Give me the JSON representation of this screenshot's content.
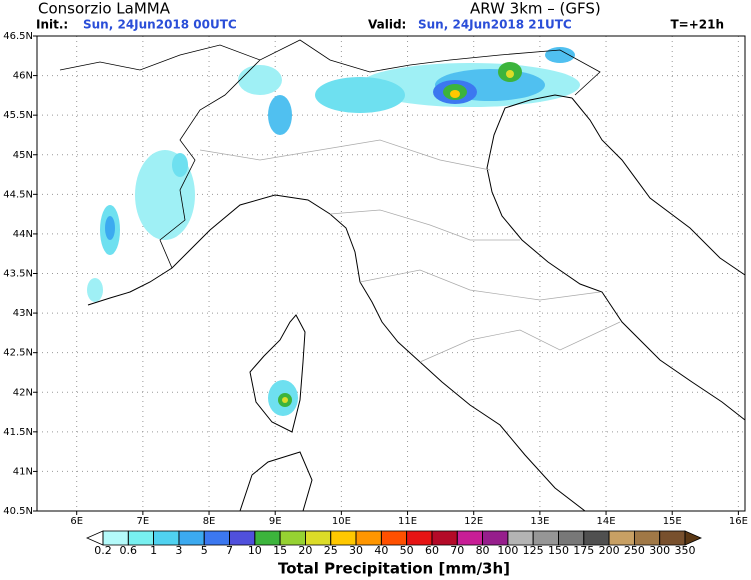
{
  "header": {
    "title": "Consorzio LaMMA",
    "model": "ARW 3km – (GFS)",
    "init_label": "Init.:",
    "init_value": "Sun, 24Jun2018 00UTC",
    "valid_label": "Valid:",
    "valid_value": "Sun, 24Jun2018 21UTC",
    "forecast_step": "T=+21h"
  },
  "map": {
    "lonlim": [
      5.4,
      16.1
    ],
    "latlim": [
      40.5,
      46.5
    ],
    "lon_ticks": [
      {
        "value": 6,
        "label": "6E"
      },
      {
        "value": 7,
        "label": "7E"
      },
      {
        "value": 8,
        "label": "8E"
      },
      {
        "value": 9,
        "label": "9E"
      },
      {
        "value": 10,
        "label": "10E"
      },
      {
        "value": 11,
        "label": "11E"
      },
      {
        "value": 12,
        "label": "12E"
      },
      {
        "value": 13,
        "label": "13E"
      },
      {
        "value": 14,
        "label": "14E"
      },
      {
        "value": 15,
        "label": "15E"
      },
      {
        "value": 16,
        "label": "16E"
      }
    ],
    "lat_ticks": [
      {
        "value": 40.5,
        "label": "40.5N"
      },
      {
        "value": 41,
        "label": "41N"
      },
      {
        "value": 41.5,
        "label": "41.5N"
      },
      {
        "value": 42,
        "label": "42N"
      },
      {
        "value": 42.5,
        "label": "42.5N"
      },
      {
        "value": 43,
        "label": "43N"
      },
      {
        "value": 43.5,
        "label": "43.5N"
      },
      {
        "value": 44,
        "label": "44N"
      },
      {
        "value": 44.5,
        "label": "44.5N"
      },
      {
        "value": 45,
        "label": "45N"
      },
      {
        "value": 45.5,
        "label": "45.5N"
      },
      {
        "value": 46,
        "label": "46N"
      },
      {
        "value": 46.5,
        "label": "46.5N"
      }
    ],
    "grid": true
  },
  "colorbar": {
    "title": "Total Precipitation [mm/3h]",
    "levels": [
      0.2,
      0.6,
      1,
      3,
      5,
      7,
      10,
      15,
      20,
      25,
      30,
      40,
      50,
      60,
      70,
      80,
      100,
      125,
      150,
      175,
      200,
      250,
      300,
      350
    ],
    "colors": [
      "#ffffff",
      "#b4fafa",
      "#78f0f0",
      "#50d2f0",
      "#3caaf0",
      "#3c78f0",
      "#5050dc",
      "#3cb43c",
      "#96d232",
      "#dcdc28",
      "#ffc800",
      "#ff9600",
      "#ff5000",
      "#e61414",
      "#b40a28",
      "#c81e96",
      "#961e8c",
      "#b4b4b4",
      "#969696",
      "#787878",
      "#505050",
      "#c8a064",
      "#a07846",
      "#78502d",
      "#5a3714"
    ]
  }
}
